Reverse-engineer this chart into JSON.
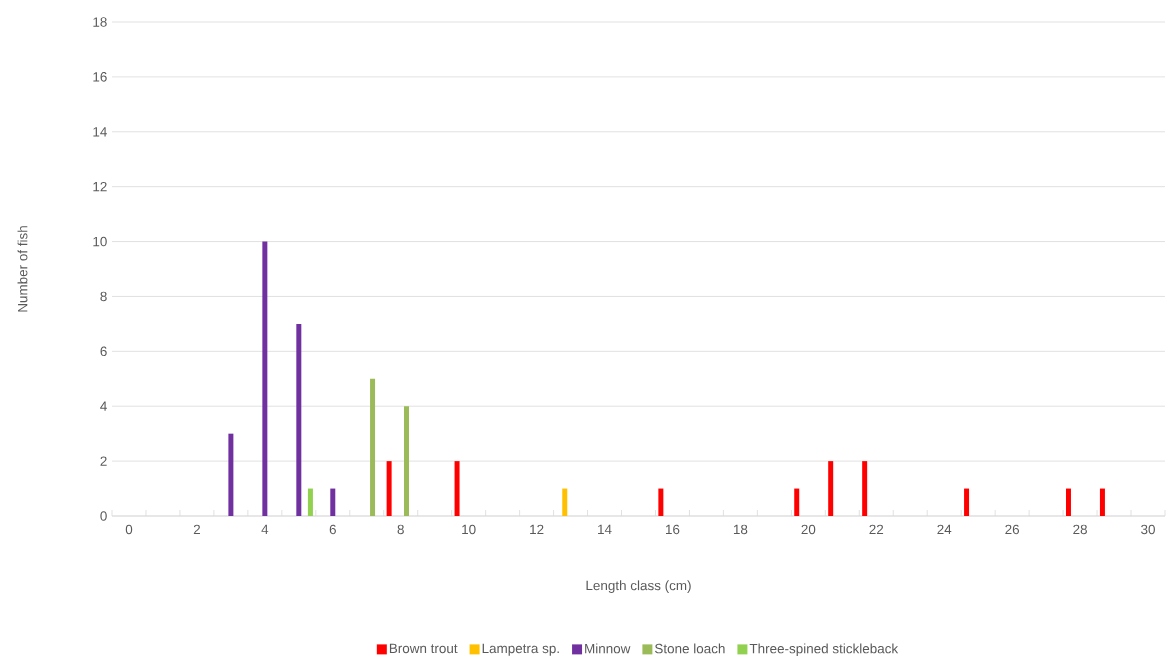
{
  "chart_data": {
    "type": "bar",
    "xlabel": "Length class (cm)",
    "ylabel": "Number of fish",
    "categories": [
      "0",
      null,
      "2",
      null,
      "4",
      null,
      "6",
      null,
      "8",
      null,
      "10",
      null,
      "12",
      null,
      "14",
      null,
      "16",
      null,
      "18",
      null,
      "20",
      null,
      "22",
      null,
      "24",
      null,
      "26",
      null,
      "28",
      null,
      "30"
    ],
    "series": [
      {
        "name": "Brown trout",
        "color": "#ff0000",
        "values": [
          null,
          null,
          null,
          null,
          null,
          null,
          null,
          null,
          2,
          null,
          2,
          null,
          null,
          null,
          null,
          null,
          1,
          null,
          null,
          null,
          1,
          2,
          2,
          null,
          null,
          1,
          null,
          null,
          1,
          1,
          null
        ]
      },
      {
        "name": "Lampetra sp.",
        "color": "#ffc000",
        "values": [
          null,
          null,
          null,
          null,
          null,
          null,
          null,
          null,
          null,
          null,
          null,
          null,
          null,
          1,
          null,
          null,
          null,
          null,
          null,
          null,
          null,
          null,
          null,
          null,
          null,
          null,
          null,
          null,
          null,
          null,
          null
        ]
      },
      {
        "name": "Minnow",
        "color": "#7030a0",
        "values": [
          null,
          null,
          null,
          3,
          10,
          7,
          1,
          null,
          null,
          null,
          null,
          null,
          null,
          null,
          null,
          null,
          null,
          null,
          null,
          null,
          null,
          null,
          null,
          null,
          null,
          null,
          null,
          null,
          null,
          null,
          null
        ]
      },
      {
        "name": "Stone loach",
        "color": "#9bbb59",
        "values": [
          null,
          null,
          null,
          null,
          null,
          null,
          null,
          5,
          4,
          null,
          null,
          null,
          null,
          null,
          null,
          null,
          null,
          null,
          null,
          null,
          null,
          null,
          null,
          null,
          null,
          null,
          null,
          null,
          null,
          null,
          null
        ]
      },
      {
        "name": "Three-spined stickleback",
        "color": "#92d050",
        "values": [
          null,
          null,
          null,
          null,
          null,
          1,
          null,
          null,
          null,
          null,
          null,
          null,
          null,
          null,
          null,
          null,
          null,
          null,
          null,
          null,
          null,
          null,
          null,
          null,
          null,
          null,
          null,
          null,
          null,
          null,
          null
        ]
      }
    ],
    "ylim": [
      0,
      18
    ],
    "yticks": [
      0,
      2,
      4,
      6,
      8,
      10,
      12,
      14,
      16,
      18
    ],
    "grid": "y",
    "legend": "bottom"
  }
}
